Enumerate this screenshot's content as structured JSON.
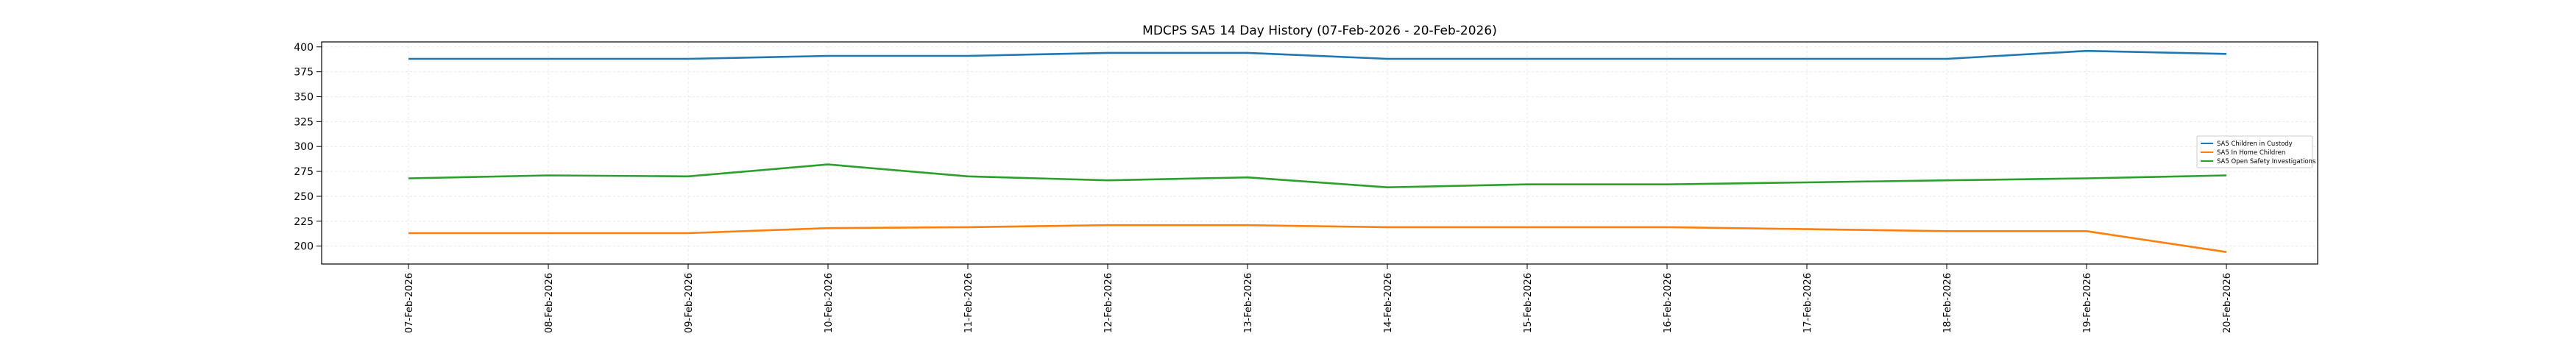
{
  "chart_data": {
    "type": "line",
    "title": "MDCPS SA5 14 Day History (07-Feb-2026 - 20-Feb-2026)",
    "xlabel": "",
    "ylabel": "",
    "categories": [
      "07-Feb-2026",
      "08-Feb-2026",
      "09-Feb-2026",
      "10-Feb-2026",
      "11-Feb-2026",
      "12-Feb-2026",
      "13-Feb-2026",
      "14-Feb-2026",
      "15-Feb-2026",
      "16-Feb-2026",
      "17-Feb-2026",
      "18-Feb-2026",
      "19-Feb-2026",
      "20-Feb-2026"
    ],
    "ylim": [
      182,
      405
    ],
    "yticks": [
      200,
      225,
      250,
      275,
      300,
      325,
      350,
      375,
      400
    ],
    "grid": true,
    "legend_position": "center-right",
    "series": [
      {
        "name": "SA5 Children in Custody",
        "color": "#1f77b4",
        "values": [
          388,
          388,
          388,
          391,
          391,
          394,
          394,
          388,
          388,
          388,
          388,
          388,
          396,
          393
        ]
      },
      {
        "name": "SA5 In Home Children",
        "color": "#ff7f0e",
        "values": [
          213,
          213,
          213,
          218,
          219,
          221,
          221,
          219,
          219,
          219,
          217,
          215,
          215,
          194
        ]
      },
      {
        "name": "SA5 Open Safety Investigations",
        "color": "#2ca02c",
        "values": [
          268,
          271,
          270,
          282,
          270,
          266,
          269,
          259,
          262,
          262,
          264,
          266,
          268,
          271
        ]
      }
    ]
  }
}
